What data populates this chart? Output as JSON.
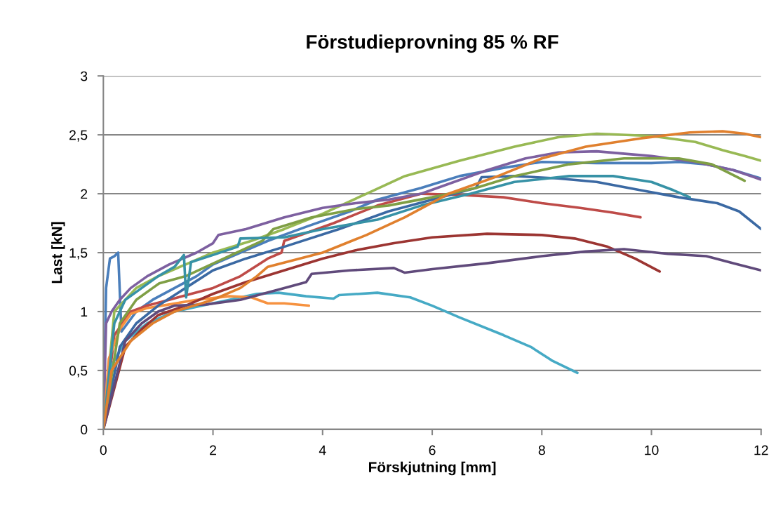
{
  "chart_data": {
    "type": "line",
    "title": "Förstudieprovning 85 % RF",
    "xlabel": "Förskjutning [mm]",
    "ylabel": "Last [kN]",
    "xlim": [
      0,
      12
    ],
    "xticks": [
      0,
      2,
      4,
      6,
      8,
      10,
      12
    ],
    "ylim": [
      0,
      3
    ],
    "yticks": [
      0,
      {
        "value": 0.5,
        "label": "0,5"
      },
      1,
      {
        "value": 1.5,
        "label": "1,5"
      },
      2,
      {
        "value": 2.5,
        "label": "2,5"
      },
      3
    ],
    "grid": "y",
    "legend": false,
    "marker": "none",
    "line_style": "solid",
    "series": [
      {
        "color": "#4a7ebb",
        "x": [
          0,
          0.05,
          0.12,
          0.2,
          0.27,
          0.33,
          0.6,
          0.9,
          1.3,
          1.7,
          2.0,
          2.5,
          3.0,
          3.7,
          4.5,
          5.0,
          5.8,
          6.5,
          7.3,
          8.0,
          9.0,
          10.0,
          10.5,
          11.0,
          11.5,
          12.0
        ],
        "values": [
          0,
          1.2,
          1.45,
          1.47,
          1.5,
          0.83,
          1.0,
          1.1,
          1.2,
          1.3,
          1.4,
          1.5,
          1.6,
          1.72,
          1.85,
          1.95,
          2.05,
          2.15,
          2.22,
          2.27,
          2.26,
          2.26,
          2.27,
          2.25,
          2.2,
          2.13
        ]
      },
      {
        "color": "#be4b48",
        "x": [
          0,
          0.2,
          0.5,
          0.8,
          1.2,
          1.6,
          2.0,
          2.5,
          3.0,
          3.25,
          3.3,
          4.2,
          5.0,
          5.8,
          6.5,
          7.3,
          8.0,
          8.7,
          9.3,
          9.8
        ],
        "values": [
          0,
          0.8,
          1.0,
          1.05,
          1.1,
          1.15,
          1.2,
          1.3,
          1.45,
          1.5,
          1.6,
          1.75,
          1.9,
          2.0,
          1.99,
          1.97,
          1.92,
          1.88,
          1.84,
          1.8
        ]
      },
      {
        "color": "#98b954",
        "x": [
          0,
          0.2,
          0.6,
          1.0,
          1.5,
          2.0,
          2.7,
          3.3,
          4.0,
          4.8,
          5.5,
          6.5,
          7.5,
          8.3,
          9.0,
          10.0,
          10.8,
          11.3,
          11.7,
          12.0
        ],
        "values": [
          0,
          1.0,
          1.2,
          1.3,
          1.4,
          1.5,
          1.6,
          1.7,
          1.83,
          2.0,
          2.15,
          2.28,
          2.4,
          2.48,
          2.51,
          2.49,
          2.44,
          2.37,
          2.32,
          2.28
        ]
      },
      {
        "color": "#7d60a0",
        "x": [
          0,
          0.05,
          0.15,
          0.3,
          0.5,
          0.8,
          1.2,
          1.7,
          2.0,
          2.1,
          2.6,
          3.3,
          4.0,
          4.6,
          5.2,
          5.8,
          6.4,
          7.0,
          7.7,
          8.3,
          9.0,
          10.0,
          10.8,
          11.5,
          12.0
        ],
        "values": [
          0,
          0.9,
          1.0,
          1.1,
          1.2,
          1.3,
          1.4,
          1.5,
          1.58,
          1.65,
          1.7,
          1.8,
          1.88,
          1.92,
          1.95,
          2.0,
          2.1,
          2.2,
          2.3,
          2.35,
          2.36,
          2.32,
          2.27,
          2.2,
          2.12
        ]
      },
      {
        "color": "#46aac5",
        "x": [
          0,
          0.1,
          0.4,
          0.8,
          1.3,
          1.8,
          2.3,
          2.8,
          3.2,
          3.7,
          4.2,
          4.3,
          5.0,
          5.6,
          6.0,
          6.5,
          7.3,
          7.8,
          8.2,
          8.65
        ],
        "values": [
          0,
          0.5,
          0.75,
          0.9,
          1.0,
          1.05,
          1.1,
          1.15,
          1.16,
          1.13,
          1.11,
          1.14,
          1.16,
          1.12,
          1.05,
          0.95,
          0.8,
          0.7,
          0.58,
          0.48
        ]
      },
      {
        "color": "#f69240",
        "x": [
          0,
          0.1,
          0.3,
          0.5,
          0.8,
          1.2,
          1.7,
          2.3,
          2.7,
          3.0,
          3.3,
          3.75
        ],
        "values": [
          0,
          0.6,
          0.85,
          0.98,
          1.03,
          1.06,
          1.1,
          1.13,
          1.12,
          1.07,
          1.07,
          1.05
        ]
      },
      {
        "color": "#3b69a3",
        "x": [
          0,
          0.3,
          0.6,
          1.0,
          1.5,
          2.0,
          2.6,
          3.3,
          4.3,
          5.2,
          6.0,
          6.8,
          6.9,
          7.5,
          8.3,
          9.0,
          9.8,
          10.5,
          11.2,
          11.6,
          12.0
        ],
        "values": [
          0,
          0.7,
          0.9,
          1.05,
          1.2,
          1.35,
          1.45,
          1.55,
          1.7,
          1.85,
          1.95,
          2.05,
          2.14,
          2.15,
          2.13,
          2.1,
          2.03,
          1.97,
          1.92,
          1.85,
          1.7
        ]
      },
      {
        "color": "#9c3532",
        "x": [
          0,
          0.4,
          0.7,
          1.0,
          1.5,
          2.0,
          2.6,
          3.3,
          4.0,
          4.6,
          5.3,
          6.0,
          7.0,
          8.0,
          8.6,
          9.2,
          9.7,
          10.15
        ],
        "values": [
          0,
          0.7,
          0.85,
          0.97,
          1.05,
          1.15,
          1.25,
          1.35,
          1.45,
          1.52,
          1.58,
          1.63,
          1.66,
          1.65,
          1.62,
          1.55,
          1.45,
          1.34
        ]
      },
      {
        "color": "#7f9f45",
        "x": [
          0,
          0.3,
          0.6,
          0.9,
          1.02,
          1.5,
          2.2,
          2.9,
          3.1,
          3.8,
          4.6,
          5.2,
          6.0,
          6.8,
          7.5,
          8.5,
          9.5,
          10.5,
          11.1,
          11.7
        ],
        "values": [
          0,
          0.9,
          1.1,
          1.2,
          1.24,
          1.3,
          1.45,
          1.6,
          1.7,
          1.8,
          1.87,
          1.9,
          1.97,
          2.05,
          2.15,
          2.25,
          2.3,
          2.3,
          2.25,
          2.11
        ]
      },
      {
        "color": "#604a7b",
        "x": [
          0,
          0.4,
          0.7,
          1.0,
          1.3,
          1.87,
          2.5,
          3.3,
          3.7,
          3.8,
          4.5,
          5.3,
          5.5,
          6.0,
          7.0,
          8.0,
          8.8,
          9.5,
          10.3,
          11.0,
          11.5,
          12.0
        ],
        "values": [
          0,
          0.75,
          0.9,
          1.0,
          1.05,
          1.06,
          1.1,
          1.2,
          1.25,
          1.32,
          1.35,
          1.37,
          1.33,
          1.36,
          1.41,
          1.47,
          1.51,
          1.53,
          1.49,
          1.47,
          1.41,
          1.35
        ]
      },
      {
        "color": "#3792a6",
        "x": [
          0,
          0.2,
          0.4,
          0.7,
          1.0,
          1.3,
          1.47,
          1.51,
          1.6,
          2.0,
          2.45,
          2.5,
          3.3,
          4.0,
          5.0,
          5.8,
          6.7,
          7.5,
          8.5,
          9.3,
          10.0,
          10.4,
          10.7
        ],
        "values": [
          0,
          0.9,
          1.1,
          1.2,
          1.3,
          1.38,
          1.48,
          1.12,
          1.42,
          1.48,
          1.55,
          1.62,
          1.63,
          1.7,
          1.78,
          1.9,
          2.0,
          2.1,
          2.15,
          2.15,
          2.1,
          2.03,
          1.97
        ]
      },
      {
        "color": "#e0802e",
        "x": [
          0,
          0.15,
          0.5,
          0.9,
          1.3,
          2.0,
          2.5,
          2.8,
          3.0,
          4.0,
          4.8,
          5.5,
          6.3,
          7.2,
          8.0,
          8.8,
          9.8,
          10.7,
          11.3,
          11.7,
          12.0
        ],
        "values": [
          0,
          0.5,
          0.75,
          0.9,
          1.0,
          1.1,
          1.2,
          1.3,
          1.38,
          1.5,
          1.65,
          1.8,
          2.0,
          2.15,
          2.3,
          2.4,
          2.47,
          2.52,
          2.53,
          2.51,
          2.48
        ]
      }
    ]
  }
}
